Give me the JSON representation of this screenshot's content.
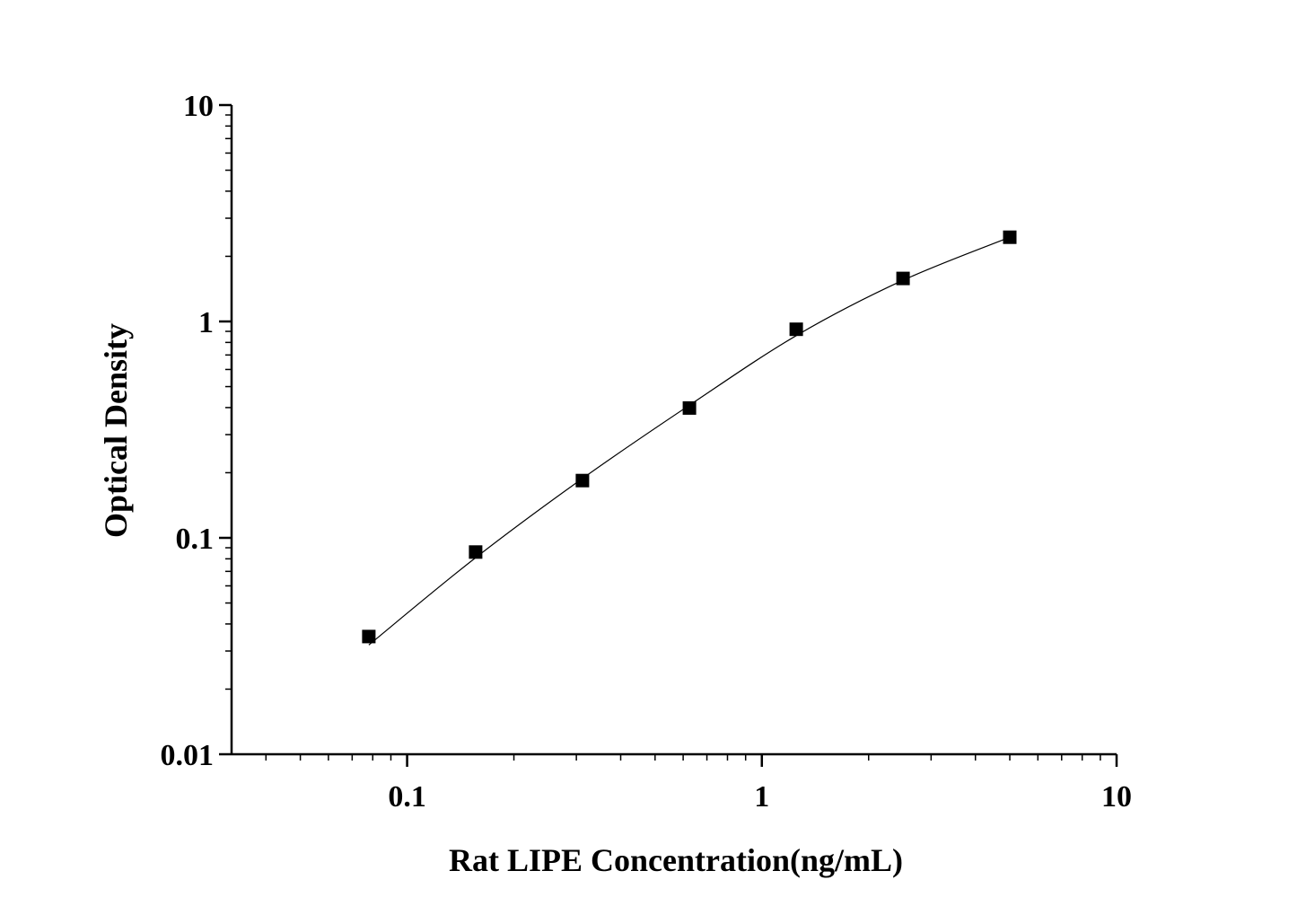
{
  "chart_data": {
    "type": "scatter",
    "title": "",
    "xlabel": "Rat LIPE Concentration(ng/mL)",
    "ylabel": "Optical Density",
    "xscale": "log",
    "yscale": "log",
    "xlim": [
      0.032,
      10
    ],
    "ylim": [
      0.01,
      10
    ],
    "grid": false,
    "legend": "none",
    "x_ticks": [
      {
        "value": 0.1,
        "label": "0.1"
      },
      {
        "value": 1,
        "label": "1"
      },
      {
        "value": 10,
        "label": "10"
      }
    ],
    "y_ticks": [
      {
        "value": 0.01,
        "label": "0.01"
      },
      {
        "value": 0.1,
        "label": "0.1"
      },
      {
        "value": 1,
        "label": "1"
      },
      {
        "value": 10,
        "label": "10"
      }
    ],
    "series": [
      {
        "x": [
          0.078,
          0.156,
          0.312,
          0.625,
          1.25,
          2.5,
          5
        ],
        "y": [
          0.035,
          0.086,
          0.184,
          0.398,
          0.92,
          1.58,
          2.45
        ],
        "marker": "square",
        "color": "#000000"
      }
    ],
    "fit_curve": {
      "x": [
        0.078,
        0.156,
        0.312,
        0.625,
        1.25,
        2.5,
        5
      ],
      "y": [
        0.032,
        0.081,
        0.188,
        0.41,
        0.86,
        1.55,
        2.45
      ],
      "color": "#000000"
    }
  }
}
